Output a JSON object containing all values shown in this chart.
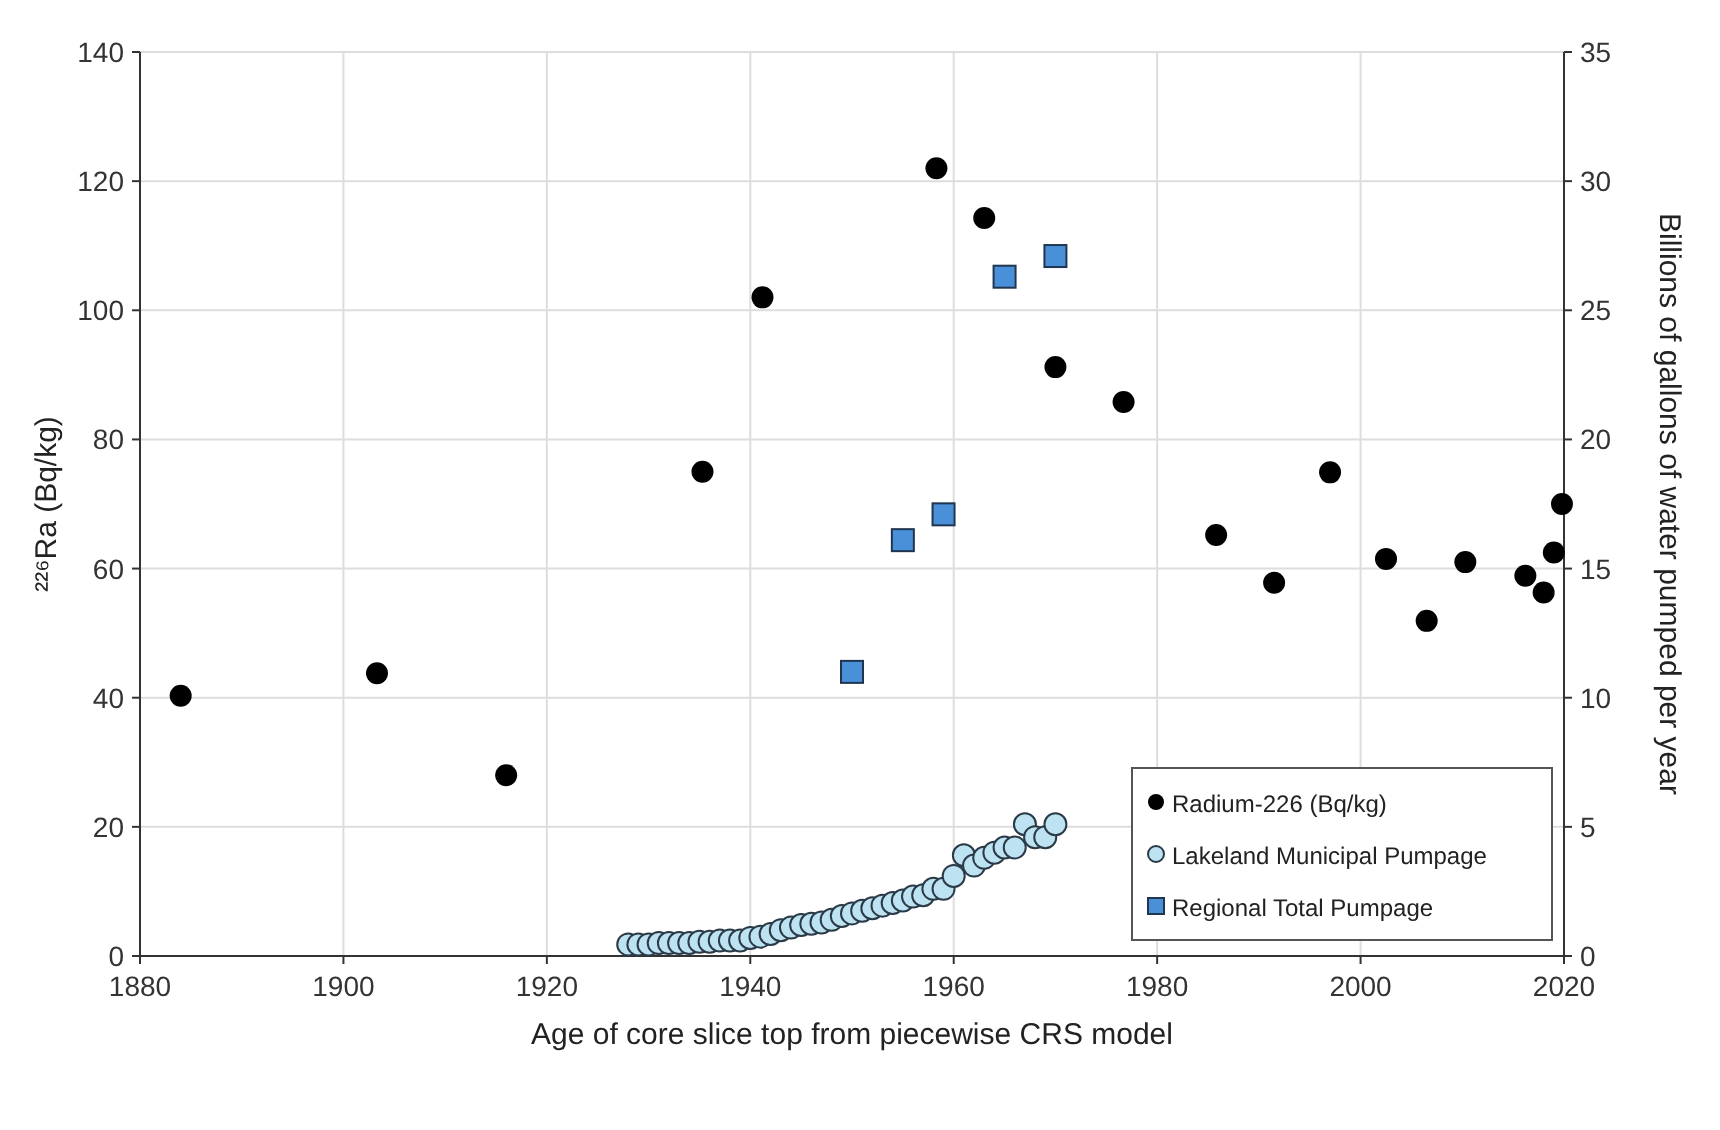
{
  "chart_data": {
    "type": "scatter",
    "xlabel": "Age of core slice top from piecewise CRS model",
    "ylabel": "²²⁶Ra (Bq/kg)",
    "y2label": "Billions of gallons of water pumped per year",
    "xlim": [
      1880,
      2020
    ],
    "xticks": [
      1880,
      1900,
      1920,
      1940,
      1960,
      1980,
      2000,
      2020
    ],
    "ylim": [
      0,
      140
    ],
    "yticks": [
      0,
      20,
      40,
      60,
      80,
      100,
      120,
      140
    ],
    "y2lim": [
      0,
      35
    ],
    "y2ticks": [
      0,
      5,
      10,
      15,
      20,
      25,
      30,
      35
    ],
    "grid": true,
    "legend": "bottom right",
    "series": [
      {
        "name": "Radium-226 (Bq/kg)",
        "color": "#000000",
        "marker": "circle",
        "x": [
          1884,
          1903.3,
          1916,
          1935.3,
          1941.2,
          1958.3,
          1963,
          1970,
          1976.7,
          1985.8,
          1991.5,
          1997,
          2002.5,
          2006.5,
          2010.3,
          2016.2,
          2018,
          2019,
          2019.8
        ],
        "values": [
          40.3,
          43.8,
          28,
          75,
          102,
          122,
          114.3,
          91.2,
          85.8,
          65.2,
          57.8,
          74.9,
          61.5,
          51.9,
          61,
          58.9,
          56.3,
          62.5,
          70
        ]
      },
      {
        "name": "Lakeland Municipal Pumpage",
        "color": "#bde3f2",
        "marker": "circle",
        "axis": "y2",
        "x": [
          1928,
          1929,
          1930,
          1931,
          1932,
          1933,
          1934,
          1935,
          1936,
          1937,
          1938,
          1939,
          1940,
          1941,
          1942,
          1943,
          1944,
          1945,
          1946,
          1947,
          1948,
          1949,
          1950,
          1951,
          1952,
          1953,
          1954,
          1955,
          1956,
          1957,
          1958,
          1959,
          1960,
          1961,
          1962,
          1963,
          1964,
          1965,
          1966,
          1967,
          1968,
          1969,
          1970
        ],
        "values": [
          0.45,
          0.45,
          0.45,
          0.5,
          0.5,
          0.5,
          0.5,
          0.55,
          0.55,
          0.6,
          0.6,
          0.6,
          0.7,
          0.75,
          0.85,
          1.0,
          1.1,
          1.2,
          1.25,
          1.3,
          1.4,
          1.55,
          1.65,
          1.75,
          1.85,
          1.95,
          2.05,
          2.15,
          2.3,
          2.35,
          2.6,
          2.6,
          3.1,
          3.9,
          3.5,
          3.8,
          4.0,
          4.2,
          4.2,
          5.1,
          4.6,
          4.6,
          5.1
        ]
      },
      {
        "name": "Regional Total Pumpage",
        "color": "#4a90d9",
        "marker": "square",
        "axis": "y2",
        "x": [
          1950,
          1955,
          1959,
          1965,
          1970
        ],
        "values": [
          11,
          16.1,
          17.1,
          26.3,
          27.1
        ]
      }
    ]
  }
}
